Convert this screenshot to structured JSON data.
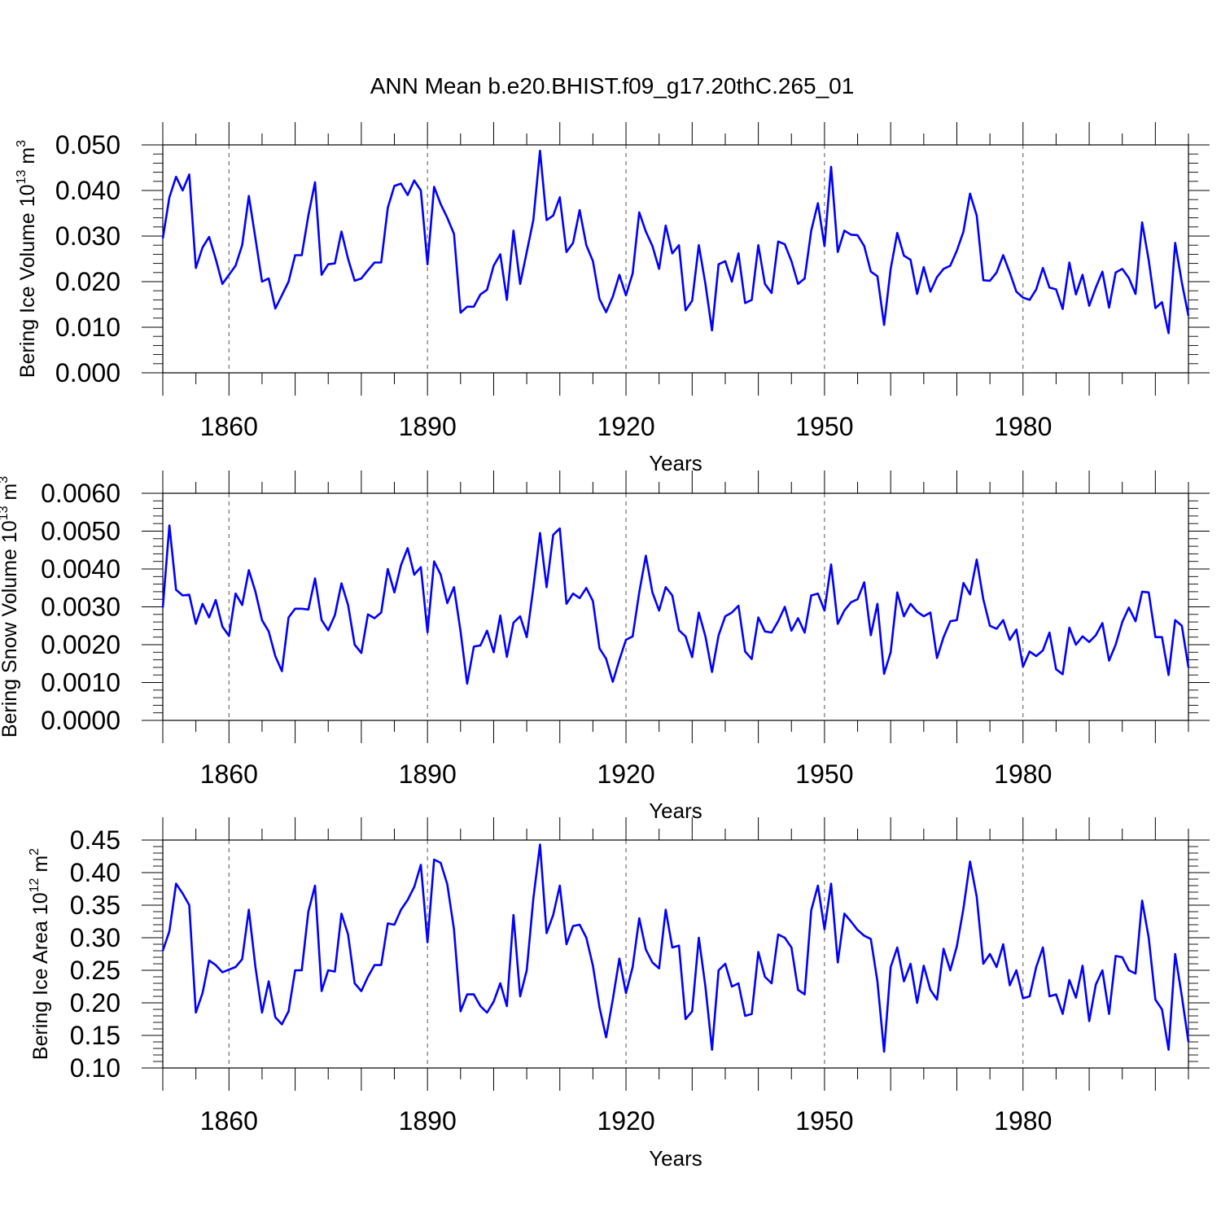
{
  "title": "ANN Mean b.e20.BHIST.f09_g17.20thC.265_01",
  "colors": {
    "series": "#0000ff",
    "axis": "#000000",
    "grid": "#555555"
  },
  "chart_data": [
    {
      "type": "line",
      "ylabel_main": "Bering Ice Volume 10",
      "ylabel_exp": "13",
      "ylabel_unit": " m",
      "ylabel_unit_exp": "3",
      "xlabel": "Years",
      "x_start": 1850,
      "xlim": [
        1850,
        2005
      ],
      "ylim": [
        0.0,
        0.05
      ],
      "yticks": [
        0.0,
        0.01,
        0.02,
        0.03,
        0.04,
        0.05
      ],
      "ytick_labels": [
        "0.000",
        "0.010",
        "0.020",
        "0.030",
        "0.040",
        "0.050"
      ],
      "xticks": [
        1860,
        1890,
        1920,
        1950,
        1980
      ],
      "xtick_labels": [
        "1860",
        "1890",
        "1920",
        "1950",
        "1980"
      ],
      "values": [
        0.0295,
        0.0385,
        0.043,
        0.04,
        0.0435,
        0.023,
        0.0275,
        0.0298,
        0.025,
        0.0195,
        0.0215,
        0.0235,
        0.028,
        0.0388,
        0.0295,
        0.02,
        0.0207,
        0.0141,
        0.017,
        0.02,
        0.0258,
        0.0258,
        0.0345,
        0.0418,
        0.0215,
        0.0238,
        0.024,
        0.031,
        0.025,
        0.0202,
        0.0207,
        0.0225,
        0.0242,
        0.0242,
        0.0362,
        0.041,
        0.0415,
        0.039,
        0.0422,
        0.04,
        0.0238,
        0.0408,
        0.037,
        0.034,
        0.0305,
        0.0132,
        0.0145,
        0.0145,
        0.0172,
        0.0182,
        0.0235,
        0.026,
        0.016,
        0.0312,
        0.0195,
        0.0265,
        0.0335,
        0.0487,
        0.0335,
        0.0345,
        0.0385,
        0.0265,
        0.0285,
        0.0357,
        0.028,
        0.0245,
        0.0162,
        0.0133,
        0.0167,
        0.0215,
        0.017,
        0.0218,
        0.0352,
        0.031,
        0.0278,
        0.0228,
        0.0323,
        0.0262,
        0.028,
        0.0137,
        0.0158,
        0.028,
        0.0195,
        0.0093,
        0.0238,
        0.0245,
        0.02,
        0.0262,
        0.0153,
        0.016,
        0.028,
        0.0195,
        0.0175,
        0.0288,
        0.0282,
        0.0245,
        0.0195,
        0.0207,
        0.0312,
        0.0372,
        0.0278,
        0.0452,
        0.0265,
        0.0312,
        0.0303,
        0.0302,
        0.0278,
        0.0222,
        0.0212,
        0.0105,
        0.0228,
        0.0307,
        0.0257,
        0.0248,
        0.0173,
        0.0232,
        0.0178,
        0.021,
        0.0228,
        0.0235,
        0.0268,
        0.031,
        0.0393,
        0.0345,
        0.0203,
        0.0202,
        0.022,
        0.0258,
        0.022,
        0.0178,
        0.0165,
        0.016,
        0.0183,
        0.023,
        0.0187,
        0.0183,
        0.014,
        0.0242,
        0.0172,
        0.0215,
        0.0147,
        0.0187,
        0.0222,
        0.0143,
        0.022,
        0.0228,
        0.0208,
        0.0173,
        0.033,
        0.0247,
        0.0142,
        0.0155,
        0.0087,
        0.0285,
        0.0198,
        0.0125
      ]
    },
    {
      "type": "line",
      "ylabel_main": "Bering Snow Volume 10",
      "ylabel_exp": "13",
      "ylabel_unit": " m",
      "ylabel_unit_exp": "3",
      "xlabel": "Years",
      "x_start": 1850,
      "xlim": [
        1850,
        2005
      ],
      "ylim": [
        0.0,
        0.006
      ],
      "yticks": [
        0.0,
        0.001,
        0.002,
        0.003,
        0.004,
        0.005,
        0.006
      ],
      "ytick_labels": [
        "0.0000",
        "0.0010",
        "0.0020",
        "0.0030",
        "0.0040",
        "0.0050",
        "0.0060"
      ],
      "xticks": [
        1860,
        1890,
        1920,
        1950,
        1980
      ],
      "xtick_labels": [
        "1860",
        "1890",
        "1920",
        "1950",
        "1980"
      ],
      "values": [
        0.00298,
        0.00515,
        0.00345,
        0.0033,
        0.00332,
        0.00255,
        0.00308,
        0.00272,
        0.00318,
        0.00248,
        0.00223,
        0.00335,
        0.00305,
        0.00397,
        0.0034,
        0.00265,
        0.00235,
        0.0017,
        0.0013,
        0.00272,
        0.00295,
        0.00295,
        0.00293,
        0.00375,
        0.00265,
        0.00238,
        0.00278,
        0.00362,
        0.00305,
        0.002,
        0.00178,
        0.0028,
        0.0027,
        0.00285,
        0.004,
        0.00338,
        0.0041,
        0.00455,
        0.00385,
        0.00405,
        0.00233,
        0.0042,
        0.00385,
        0.0031,
        0.00352,
        0.00235,
        0.00097,
        0.00195,
        0.00198,
        0.00237,
        0.0018,
        0.00277,
        0.00168,
        0.00258,
        0.00275,
        0.0022,
        0.0035,
        0.00495,
        0.00352,
        0.0049,
        0.00507,
        0.00308,
        0.00335,
        0.00323,
        0.0035,
        0.00315,
        0.0019,
        0.00163,
        0.00102,
        0.0016,
        0.00213,
        0.00222,
        0.00338,
        0.00435,
        0.00338,
        0.0029,
        0.00352,
        0.0033,
        0.00238,
        0.00222,
        0.00167,
        0.00285,
        0.00222,
        0.00128,
        0.00225,
        0.00275,
        0.00285,
        0.00303,
        0.00182,
        0.00162,
        0.00272,
        0.00235,
        0.00232,
        0.00262,
        0.003,
        0.00237,
        0.0027,
        0.00232,
        0.0033,
        0.00335,
        0.0029,
        0.00412,
        0.00255,
        0.0029,
        0.00312,
        0.0032,
        0.00365,
        0.00225,
        0.00308,
        0.00123,
        0.0018,
        0.00338,
        0.00275,
        0.00308,
        0.00287,
        0.00275,
        0.00285,
        0.00165,
        0.0022,
        0.00262,
        0.00265,
        0.00363,
        0.00333,
        0.00425,
        0.0032,
        0.0025,
        0.00242,
        0.00265,
        0.00213,
        0.0024,
        0.00142,
        0.00182,
        0.0017,
        0.00185,
        0.00232,
        0.00135,
        0.00122,
        0.00245,
        0.002,
        0.00222,
        0.00207,
        0.00225,
        0.00257,
        0.00158,
        0.002,
        0.0026,
        0.00298,
        0.00262,
        0.0034,
        0.00338,
        0.0022,
        0.0022,
        0.0012,
        0.00265,
        0.0025,
        0.0014
      ]
    },
    {
      "type": "line",
      "ylabel_main": "Bering Ice Area 10",
      "ylabel_exp": "12",
      "ylabel_unit": " m",
      "ylabel_unit_exp": "2",
      "xlabel": "Years",
      "x_start": 1850,
      "xlim": [
        1850,
        2005
      ],
      "ylim": [
        0.1,
        0.45
      ],
      "yticks": [
        0.1,
        0.15,
        0.2,
        0.25,
        0.3,
        0.35,
        0.4,
        0.45
      ],
      "ytick_labels": [
        "0.10",
        "0.15",
        "0.20",
        "0.25",
        "0.30",
        "0.35",
        "0.40",
        "0.45"
      ],
      "xticks": [
        1860,
        1890,
        1920,
        1950,
        1980
      ],
      "xtick_labels": [
        "1860",
        "1890",
        "1920",
        "1950",
        "1980"
      ],
      "values": [
        0.28,
        0.31,
        0.383,
        0.368,
        0.35,
        0.185,
        0.215,
        0.265,
        0.258,
        0.247,
        0.251,
        0.255,
        0.267,
        0.343,
        0.255,
        0.185,
        0.233,
        0.178,
        0.167,
        0.187,
        0.25,
        0.25,
        0.34,
        0.38,
        0.218,
        0.25,
        0.248,
        0.337,
        0.305,
        0.23,
        0.218,
        0.24,
        0.258,
        0.258,
        0.322,
        0.32,
        0.343,
        0.358,
        0.378,
        0.412,
        0.293,
        0.42,
        0.415,
        0.382,
        0.313,
        0.187,
        0.213,
        0.213,
        0.195,
        0.185,
        0.202,
        0.23,
        0.195,
        0.335,
        0.21,
        0.25,
        0.36,
        0.443,
        0.307,
        0.335,
        0.38,
        0.29,
        0.318,
        0.32,
        0.3,
        0.257,
        0.193,
        0.147,
        0.205,
        0.268,
        0.215,
        0.255,
        0.33,
        0.282,
        0.262,
        0.253,
        0.343,
        0.285,
        0.288,
        0.175,
        0.187,
        0.3,
        0.225,
        0.128,
        0.25,
        0.26,
        0.225,
        0.23,
        0.18,
        0.183,
        0.278,
        0.24,
        0.23,
        0.305,
        0.3,
        0.285,
        0.22,
        0.213,
        0.342,
        0.38,
        0.313,
        0.383,
        0.262,
        0.337,
        0.325,
        0.312,
        0.303,
        0.298,
        0.233,
        0.125,
        0.255,
        0.285,
        0.233,
        0.26,
        0.2,
        0.257,
        0.22,
        0.205,
        0.283,
        0.25,
        0.287,
        0.345,
        0.417,
        0.363,
        0.26,
        0.275,
        0.255,
        0.29,
        0.227,
        0.25,
        0.207,
        0.21,
        0.255,
        0.285,
        0.21,
        0.213,
        0.183,
        0.235,
        0.208,
        0.257,
        0.172,
        0.228,
        0.25,
        0.183,
        0.272,
        0.27,
        0.25,
        0.245,
        0.357,
        0.3,
        0.205,
        0.19,
        0.128,
        0.275,
        0.21,
        0.14
      ]
    }
  ]
}
